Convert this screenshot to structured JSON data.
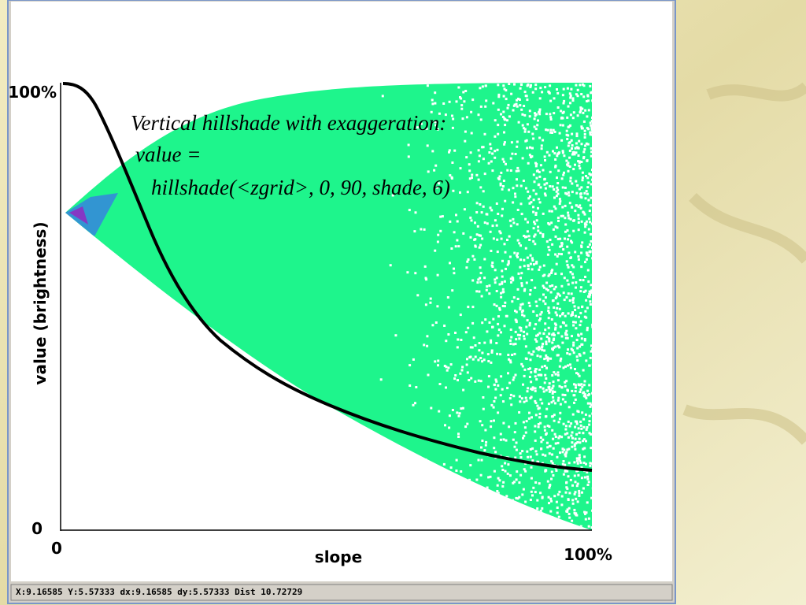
{
  "window": {
    "status_bar": "X:9.16585 Y:5.57333 dx:9.16585 dy:5.57333 Dist 10.72729"
  },
  "plot": {
    "y_axis_label": "value (brightness)",
    "x_axis_label": "slope",
    "y_max_label": "100%",
    "y_min_label": "0",
    "x_min_label": "0",
    "x_max_label": "100%",
    "annotation": [
      "Vertical hillshade with exaggeration:",
      "value =",
      "hillshade(<zgrid>, 0, 90, shade, 6)"
    ]
  }
}
